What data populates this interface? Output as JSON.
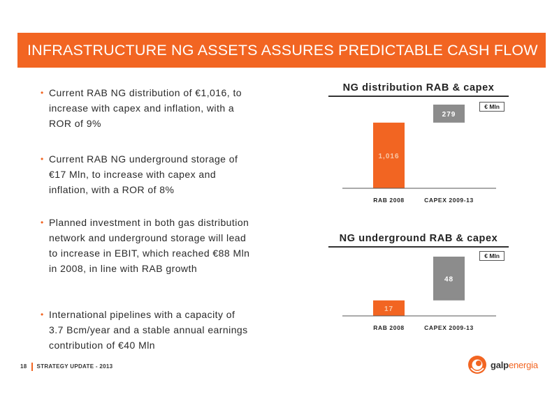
{
  "title": "INFRASTRUCTURE NG ASSETS ASSURES PREDICTABLE CASH FLOW",
  "bullets": [
    {
      "text": "Current RAB NG distribution of €1,016, to increase with capex and inflation, with a ROR of 9%"
    },
    {
      "text": "Current RAB NG underground storage of €17 Mln, to increase with capex and inflation, with a ROR of 8%"
    },
    {
      "text": "Planned investment in both gas distribution network and underground storage will lead to increase in EBIT, which reached €88 Mln in 2008, in line with RAB growth"
    },
    {
      "text": "International pipelines with a capacity of 3.7 Bcm/year and a stable annual earnings contribution of €40 Mln"
    }
  ],
  "chart_data": [
    {
      "type": "bar",
      "variant": "waterfall",
      "title": "NG distribution RAB & capex",
      "unit": "€ Mln",
      "categories": [
        "RAB 2008",
        "CAPEX 2009-13"
      ],
      "values": [
        1016,
        279
      ],
      "labels": [
        "1,016",
        "279"
      ],
      "colors": [
        "#f26522",
        "#8c8c8c"
      ],
      "label_colors": [
        "#f8c8a8",
        "#ffffff"
      ]
    },
    {
      "type": "bar",
      "variant": "waterfall",
      "title": "NG underground RAB & capex",
      "unit": "€ Mln",
      "categories": [
        "RAB 2008",
        "CAPEX 2009-13"
      ],
      "values": [
        17,
        48
      ],
      "labels": [
        "17",
        "48"
      ],
      "colors": [
        "#f26522",
        "#8c8c8c"
      ],
      "label_colors": [
        "#f8c8a8",
        "#ffffff"
      ]
    }
  ],
  "footer": {
    "page": "18",
    "text": "STRATEGY UPDATE - 2013"
  },
  "logo": {
    "brand1": "galp",
    "brand2": "energia"
  }
}
